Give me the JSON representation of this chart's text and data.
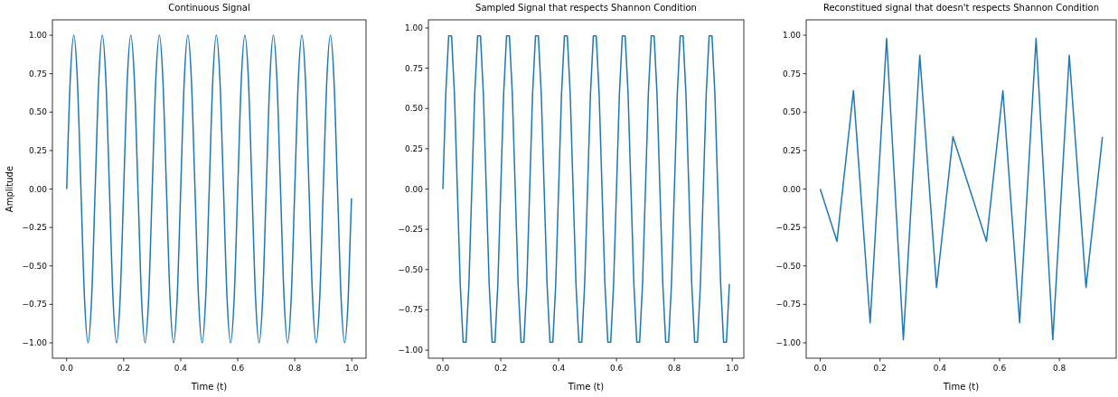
{
  "chart_data": [
    {
      "type": "line",
      "title": "Continuous Signal",
      "xlabel": "Time (t)",
      "ylabel": "Amplitude",
      "xlim": [
        -0.05,
        1.05
      ],
      "ylim": [
        -1.1,
        1.1
      ],
      "xticks": [
        {
          "value": 0,
          "label": "0.0"
        },
        {
          "value": 0.2,
          "label": "0.2"
        },
        {
          "value": 0.4,
          "label": "0.4"
        },
        {
          "value": 0.6,
          "label": "0.6"
        },
        {
          "value": 0.8,
          "label": "0.8"
        },
        {
          "value": 1,
          "label": "1.0"
        }
      ],
      "yticks": [
        {
          "value": -1,
          "label": "−1.00"
        },
        {
          "value": -0.75,
          "label": "−0.75"
        },
        {
          "value": -0.5,
          "label": "−0.50"
        },
        {
          "value": -0.25,
          "label": "−0.25"
        },
        {
          "value": 0,
          "label": "0.00"
        },
        {
          "value": 0.25,
          "label": "0.25"
        },
        {
          "value": 0.5,
          "label": "0.50"
        },
        {
          "value": 0.75,
          "label": "0.75"
        },
        {
          "value": 1,
          "label": "1.00"
        }
      ],
      "x": [
        0,
        0.0125,
        0.025,
        0.0375,
        0.05,
        0.0625,
        0.075,
        0.0875,
        0.1,
        0.1125,
        0.125,
        0.1375,
        0.15,
        0.1625,
        0.175,
        0.1875,
        0.2,
        0.2125,
        0.225,
        0.2375,
        0.25,
        0.2625,
        0.275,
        0.2875,
        0.3,
        0.3125,
        0.325,
        0.3375,
        0.35,
        0.3625,
        0.375,
        0.3875,
        0.4,
        0.4125,
        0.425,
        0.4375,
        0.45,
        0.4625,
        0.475,
        0.4875,
        0.5,
        0.5125,
        0.525,
        0.5375,
        0.55,
        0.5625,
        0.575,
        0.5875,
        0.6,
        0.6125,
        0.625,
        0.6375,
        0.65,
        0.6625,
        0.675,
        0.6875,
        0.7,
        0.7125,
        0.725,
        0.7375,
        0.75,
        0.7625,
        0.775,
        0.7875,
        0.8,
        0.8125,
        0.825,
        0.8375,
        0.85,
        0.8625,
        0.875,
        0.8875,
        0.9,
        0.9125,
        0.925,
        0.9375,
        0.95,
        0.9625,
        0.975,
        0.9875,
        0.999
      ],
      "series": [
        {
          "color": "#1f77b4",
          "values": [
            0,
            0.71,
            1,
            0.71,
            0,
            -0.71,
            -1,
            -0.71,
            0,
            0.71,
            1,
            0.71,
            0,
            -0.71,
            -1,
            -0.71,
            0,
            0.71,
            1,
            0.71,
            0,
            -0.71,
            -1,
            -0.71,
            0,
            0.71,
            1,
            0.71,
            0,
            -0.71,
            -1,
            -0.71,
            0,
            0.71,
            1,
            0.71,
            0,
            -0.71,
            -1,
            -0.71,
            0,
            0.71,
            1,
            0.71,
            0,
            -0.71,
            -1,
            -0.71,
            0,
            0.71,
            1,
            0.71,
            0,
            -0.71,
            -1,
            -0.71,
            0,
            0.71,
            1,
            0.71,
            0,
            -0.71,
            -1,
            -0.71,
            0,
            0.71,
            1,
            0.71,
            0,
            -0.71,
            -1,
            -0.71,
            0,
            0.71,
            1,
            0.71,
            0,
            -0.71,
            -1,
            -0.71,
            -0.06
          ]
        }
      ]
    },
    {
      "type": "line",
      "title": "Sampled Signal that respects Shannon Condition",
      "xlabel": "Time (t)",
      "xlim": [
        -0.05,
        1.04
      ],
      "ylim": [
        -1.05,
        1.05
      ],
      "xticks": [
        {
          "value": 0,
          "label": "0.0"
        },
        {
          "value": 0.2,
          "label": "0.2"
        },
        {
          "value": 0.4,
          "label": "0.4"
        },
        {
          "value": 0.6,
          "label": "0.6"
        },
        {
          "value": 0.8,
          "label": "0.8"
        },
        {
          "value": 1,
          "label": "1.0"
        }
      ],
      "yticks": [
        {
          "value": -1,
          "label": "−1.00"
        },
        {
          "value": -0.75,
          "label": "−0.75"
        },
        {
          "value": -0.5,
          "label": "−0.50"
        },
        {
          "value": -0.25,
          "label": "−0.25"
        },
        {
          "value": 0,
          "label": "0.00"
        },
        {
          "value": 0.25,
          "label": "0.25"
        },
        {
          "value": 0.5,
          "label": "0.50"
        },
        {
          "value": 0.75,
          "label": "0.75"
        },
        {
          "value": 1,
          "label": "1.00"
        }
      ],
      "x": [
        0,
        0.01,
        0.02,
        0.03,
        0.04,
        0.05,
        0.06,
        0.07,
        0.08,
        0.09,
        0.1,
        0.11,
        0.12,
        0.13,
        0.14,
        0.15,
        0.16,
        0.17,
        0.18,
        0.19,
        0.2,
        0.21,
        0.22,
        0.23,
        0.24,
        0.25,
        0.26,
        0.27,
        0.28,
        0.29,
        0.3,
        0.31,
        0.32,
        0.33,
        0.34,
        0.35,
        0.36,
        0.37,
        0.38,
        0.39,
        0.4,
        0.41,
        0.42,
        0.43,
        0.44,
        0.45,
        0.46,
        0.47,
        0.48,
        0.49,
        0.5,
        0.51,
        0.52,
        0.53,
        0.54,
        0.55,
        0.56,
        0.57,
        0.58,
        0.59,
        0.6,
        0.61,
        0.62,
        0.63,
        0.64,
        0.65,
        0.66,
        0.67,
        0.68,
        0.69,
        0.7,
        0.71,
        0.72,
        0.73,
        0.74,
        0.75,
        0.76,
        0.77,
        0.78,
        0.79,
        0.8,
        0.81,
        0.82,
        0.83,
        0.84,
        0.85,
        0.86,
        0.87,
        0.88,
        0.89,
        0.9,
        0.91,
        0.92,
        0.93,
        0.94,
        0.95,
        0.96,
        0.97,
        0.98,
        0.99
      ],
      "series": [
        {
          "color": "#1f77b4",
          "values": [
            0,
            0.59,
            0.95,
            0.95,
            0.59,
            0,
            -0.59,
            -0.95,
            -0.95,
            -0.59,
            0,
            0.59,
            0.95,
            0.95,
            0.59,
            0,
            -0.59,
            -0.95,
            -0.95,
            -0.59,
            0,
            0.59,
            0.95,
            0.95,
            0.59,
            0,
            -0.59,
            -0.95,
            -0.95,
            -0.59,
            0,
            0.59,
            0.95,
            0.95,
            0.59,
            0,
            -0.59,
            -0.95,
            -0.95,
            -0.59,
            0,
            0.59,
            0.95,
            0.95,
            0.59,
            0,
            -0.59,
            -0.95,
            -0.95,
            -0.59,
            0,
            0.59,
            0.95,
            0.95,
            0.59,
            0,
            -0.59,
            -0.95,
            -0.95,
            -0.59,
            0,
            0.59,
            0.95,
            0.95,
            0.59,
            0,
            -0.59,
            -0.95,
            -0.95,
            -0.59,
            0,
            0.59,
            0.95,
            0.95,
            0.59,
            0,
            -0.59,
            -0.95,
            -0.95,
            -0.59,
            0,
            0.59,
            0.95,
            0.95,
            0.59,
            0,
            -0.59,
            -0.95,
            -0.95,
            -0.59,
            0,
            0.59,
            0.95,
            0.95,
            0.59,
            0,
            -0.59,
            -0.95,
            -0.95,
            -0.59
          ]
        }
      ]
    },
    {
      "type": "line",
      "title": "Reconstitued signal that doesn't respects Shannon Condition",
      "xlabel": "Time (t)",
      "xlim": [
        -0.047,
        0.99
      ],
      "ylim": [
        -1.1,
        1.1
      ],
      "xticks": [
        {
          "value": 0,
          "label": "0.0"
        },
        {
          "value": 0.2,
          "label": "0.2"
        },
        {
          "value": 0.4,
          "label": "0.4"
        },
        {
          "value": 0.6,
          "label": "0.6"
        },
        {
          "value": 0.8,
          "label": "0.8"
        }
      ],
      "yticks": [
        {
          "value": -1,
          "label": "−1.00"
        },
        {
          "value": -0.75,
          "label": "−0.75"
        },
        {
          "value": -0.5,
          "label": "−0.50"
        },
        {
          "value": -0.25,
          "label": "−0.25"
        },
        {
          "value": 0,
          "label": "0.00"
        },
        {
          "value": 0.25,
          "label": "0.25"
        },
        {
          "value": 0.5,
          "label": "0.50"
        },
        {
          "value": 0.75,
          "label": "0.75"
        },
        {
          "value": 1,
          "label": "1.00"
        }
      ],
      "x": [
        0,
        0.056,
        0.111,
        0.167,
        0.222,
        0.278,
        0.333,
        0.389,
        0.444,
        0.5,
        0.556,
        0.611,
        0.667,
        0.722,
        0.778,
        0.833,
        0.889,
        0.944
      ],
      "series": [
        {
          "color": "#1f77b4",
          "values": [
            0,
            -0.34,
            0.64,
            -0.87,
            0.98,
            -0.98,
            0.87,
            -0.64,
            0.34,
            0,
            -0.34,
            0.64,
            -0.87,
            0.98,
            -0.98,
            0.87,
            -0.64,
            0.34
          ]
        }
      ]
    }
  ]
}
